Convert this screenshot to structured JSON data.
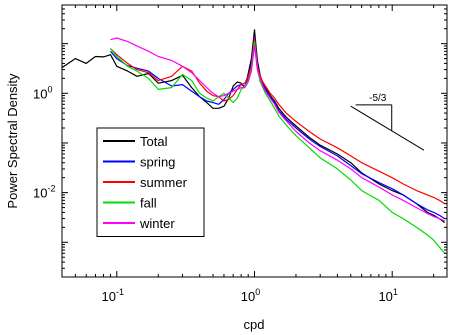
{
  "chart_data": {
    "type": "line",
    "title": "",
    "xlabel": "cpd",
    "ylabel": "Power Spectral Density",
    "xscale": "log",
    "yscale": "log",
    "xlim": [
      0.04,
      25
    ],
    "ylim": [
      0.0002,
      60
    ],
    "grid": false,
    "legend_position": "middle-left",
    "x_ticks": [
      {
        "value": 0.1,
        "base": "10",
        "exp": "-1"
      },
      {
        "value": 1,
        "base": "10",
        "exp": "0"
      },
      {
        "value": 10,
        "base": "10",
        "exp": "1"
      }
    ],
    "y_ticks": [
      {
        "value": 0.01,
        "base": "10",
        "exp": "-2"
      },
      {
        "value": 1,
        "base": "10",
        "exp": "0"
      }
    ],
    "annotation": {
      "label": "-5/3",
      "slope": -1.6667,
      "x0": 5,
      "x1": 17,
      "y0": 0.55
    },
    "series": [
      {
        "name": "Total",
        "color": "#000000",
        "x": [
          0.04,
          0.05,
          0.06,
          0.07,
          0.08,
          0.09,
          0.1,
          0.12,
          0.14,
          0.17,
          0.2,
          0.25,
          0.3,
          0.35,
          0.4,
          0.45,
          0.5,
          0.55,
          0.6,
          0.65,
          0.7,
          0.75,
          0.8,
          0.85,
          0.9,
          0.95,
          1.0,
          1.05,
          1.1,
          1.15,
          1.2,
          1.3,
          1.4,
          1.5,
          1.7,
          2.0,
          2.5,
          3,
          4,
          5,
          6,
          8,
          10,
          12,
          15,
          18,
          20,
          22,
          24
        ],
        "y": [
          3.3,
          5.0,
          4.0,
          5.5,
          5.4,
          6.0,
          3.5,
          2.8,
          2.2,
          2.5,
          1.6,
          1.8,
          2.3,
          1.3,
          0.85,
          0.65,
          0.5,
          0.5,
          0.55,
          0.8,
          1.4,
          1.7,
          1.6,
          1.3,
          2.5,
          5.0,
          19,
          4.5,
          2.3,
          1.6,
          1.3,
          0.9,
          0.7,
          0.5,
          0.33,
          0.22,
          0.13,
          0.09,
          0.06,
          0.04,
          0.025,
          0.015,
          0.011,
          0.009,
          0.006,
          0.004,
          0.0035,
          0.003,
          0.0025
        ]
      },
      {
        "name": "spring",
        "color": "#0000ff",
        "x": [
          0.09,
          0.1,
          0.12,
          0.14,
          0.17,
          0.2,
          0.25,
          0.3,
          0.35,
          0.4,
          0.45,
          0.5,
          0.55,
          0.6,
          0.65,
          0.7,
          0.75,
          0.8,
          0.85,
          0.9,
          0.95,
          1.0,
          1.05,
          1.1,
          1.15,
          1.2,
          1.3,
          1.4,
          1.5,
          1.7,
          2.0,
          2.5,
          3,
          4,
          5,
          6,
          8,
          10,
          12,
          15,
          18,
          20,
          22,
          24
        ],
        "y": [
          7.0,
          5.0,
          3.6,
          3.2,
          2.8,
          2.0,
          1.4,
          1.5,
          1.1,
          0.85,
          0.7,
          0.65,
          0.6,
          0.75,
          1.0,
          1.2,
          1.4,
          1.5,
          1.4,
          2.0,
          4.0,
          14,
          3.8,
          2.0,
          1.5,
          1.2,
          0.85,
          0.65,
          0.45,
          0.3,
          0.2,
          0.12,
          0.085,
          0.055,
          0.035,
          0.024,
          0.016,
          0.012,
          0.009,
          0.006,
          0.0045,
          0.004,
          0.0035,
          0.003
        ]
      },
      {
        "name": "summer",
        "color": "#ff0000",
        "x": [
          0.09,
          0.1,
          0.12,
          0.14,
          0.17,
          0.2,
          0.25,
          0.3,
          0.35,
          0.4,
          0.45,
          0.5,
          0.55,
          0.6,
          0.65,
          0.7,
          0.75,
          0.8,
          0.85,
          0.9,
          0.95,
          1.0,
          1.05,
          1.1,
          1.15,
          1.2,
          1.3,
          1.4,
          1.5,
          1.7,
          2.0,
          2.5,
          3,
          4,
          5,
          6,
          8,
          10,
          12,
          15,
          18,
          20,
          22,
          24
        ],
        "y": [
          8.0,
          6.0,
          4.0,
          3.0,
          2.6,
          1.8,
          2.2,
          3.5,
          2.8,
          1.6,
          1.1,
          0.9,
          0.85,
          0.7,
          0.75,
          0.9,
          1.2,
          1.5,
          1.6,
          2.2,
          3.5,
          13,
          3.5,
          2.2,
          1.7,
          1.4,
          1.0,
          0.8,
          0.6,
          0.4,
          0.27,
          0.17,
          0.12,
          0.08,
          0.055,
          0.04,
          0.027,
          0.02,
          0.015,
          0.011,
          0.009,
          0.008,
          0.007,
          0.006
        ]
      },
      {
        "name": "fall",
        "color": "#00dd00",
        "x": [
          0.09,
          0.1,
          0.12,
          0.14,
          0.17,
          0.2,
          0.25,
          0.3,
          0.35,
          0.4,
          0.45,
          0.5,
          0.55,
          0.6,
          0.65,
          0.7,
          0.75,
          0.8,
          0.85,
          0.9,
          0.95,
          1.0,
          1.05,
          1.1,
          1.15,
          1.2,
          1.3,
          1.4,
          1.5,
          1.7,
          2.0,
          2.5,
          3,
          4,
          5,
          6,
          8,
          10,
          12,
          15,
          18,
          20,
          22,
          24
        ],
        "y": [
          8.0,
          5.5,
          3.5,
          2.8,
          2.0,
          1.2,
          1.3,
          2.4,
          1.8,
          1.0,
          0.8,
          0.7,
          0.85,
          1.0,
          0.8,
          0.65,
          0.8,
          1.2,
          1.4,
          1.8,
          3.0,
          11,
          3.0,
          1.7,
          1.3,
          1.0,
          0.7,
          0.5,
          0.35,
          0.23,
          0.14,
          0.08,
          0.05,
          0.03,
          0.018,
          0.011,
          0.007,
          0.004,
          0.003,
          0.002,
          0.0014,
          0.0011,
          0.0008,
          0.0006
        ]
      },
      {
        "name": "winter",
        "color": "#ff00ff",
        "x": [
          0.09,
          0.1,
          0.12,
          0.14,
          0.17,
          0.2,
          0.25,
          0.3,
          0.35,
          0.4,
          0.45,
          0.5,
          0.55,
          0.6,
          0.65,
          0.7,
          0.75,
          0.8,
          0.85,
          0.9,
          0.95,
          1.0,
          1.05,
          1.1,
          1.15,
          1.2,
          1.3,
          1.4,
          1.5,
          1.7,
          2.0,
          2.5,
          3,
          4,
          5,
          6,
          8,
          10,
          12,
          15,
          18,
          20,
          22,
          24
        ],
        "y": [
          12,
          13,
          11,
          9,
          7,
          5.5,
          4.6,
          3.5,
          2.6,
          1.8,
          1.3,
          1.0,
          0.85,
          0.9,
          1.0,
          1.1,
          1.2,
          1.3,
          1.3,
          1.7,
          2.8,
          9,
          3.0,
          2.0,
          1.4,
          1.1,
          0.8,
          0.6,
          0.42,
          0.28,
          0.17,
          0.1,
          0.07,
          0.045,
          0.03,
          0.02,
          0.013,
          0.009,
          0.007,
          0.005,
          0.0038,
          0.0033,
          0.003,
          0.0027
        ]
      }
    ]
  }
}
